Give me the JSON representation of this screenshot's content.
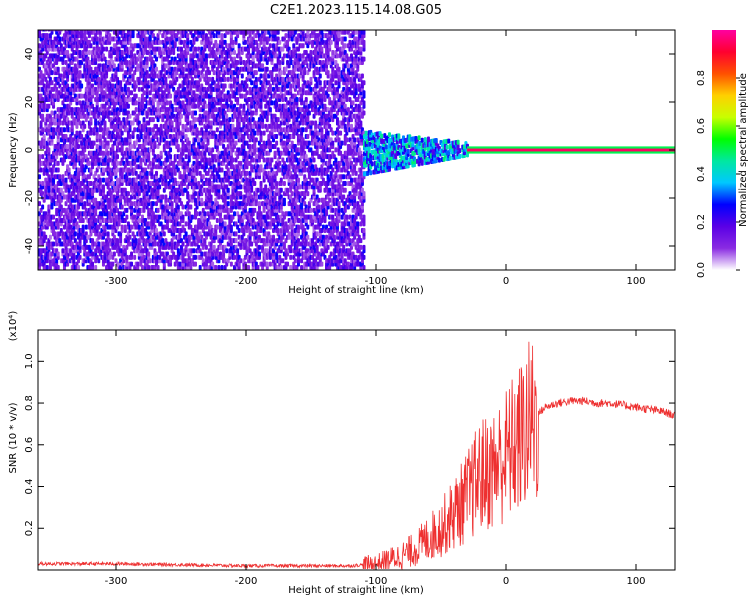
{
  "title": "C2E1.2023.115.14.08.G05",
  "chart_data": [
    {
      "type": "heatmap",
      "xlabel": "Height of straight line (km)",
      "ylabel": "Frequency (Hz)",
      "xlim": [
        -360,
        130
      ],
      "ylim": [
        -50,
        50
      ],
      "xticks": [
        -300,
        -200,
        -100,
        0,
        100
      ],
      "xtick_labels": [
        "-300",
        "-200",
        "-100",
        "0",
        "100"
      ],
      "yticks": [
        -40,
        -20,
        0,
        20,
        40
      ],
      "ytick_labels": [
        "-40",
        "-20",
        "0",
        "20",
        "40"
      ],
      "colorbar": {
        "label": "Normalized spectral amplitude",
        "range": [
          0,
          1
        ],
        "ticks": [
          0.0,
          0.2,
          0.4,
          0.6,
          0.8
        ],
        "tick_labels": [
          "0.0",
          "0.2",
          "0.4",
          "0.6",
          "0.8"
        ],
        "stops": [
          "#ffffff",
          "#8a2be2",
          "#5a00e6",
          "#0000ff",
          "#00c8ff",
          "#00e8a0",
          "#00ff00",
          "#c8ff00",
          "#ffd000",
          "#ff5000",
          "#ff0030",
          "#ff00a0"
        ]
      },
      "features": [
        {
          "name": "noise",
          "x_range": [
            -360,
            -110
          ],
          "amplitude": 0.1
        },
        {
          "name": "transition",
          "x_range": [
            -110,
            -30
          ],
          "freq_spread_hz": [
            -8,
            5
          ],
          "amplitude": 0.35
        },
        {
          "name": "carrier",
          "x_range": [
            -30,
            130
          ],
          "freq_hz": 0,
          "amplitude": 0.95
        }
      ],
      "grid": false
    },
    {
      "type": "line",
      "xlabel": "Height of straight line (km)",
      "ylabel": "SNR (10 * v/v)",
      "multiplier": "(x10⁴)",
      "xlim": [
        -360,
        130
      ],
      "ylim": [
        0,
        1.15
      ],
      "xticks": [
        -300,
        -200,
        -100,
        0,
        100
      ],
      "xtick_labels": [
        "-300",
        "-200",
        "-100",
        "0",
        "100"
      ],
      "yticks": [
        0.2,
        0.4,
        0.6,
        0.8,
        1.0
      ],
      "ytick_labels": [
        "0.2",
        "0.4",
        "0.6",
        "0.8",
        "1.0"
      ],
      "series": [
        {
          "color": "#ee3030",
          "x": [
            -360,
            -300,
            -250,
            -200,
            -150,
            -120,
            -100,
            -90,
            -80,
            -70,
            -60,
            -50,
            -40,
            -30,
            -20,
            -10,
            0,
            10,
            20,
            30,
            40,
            50,
            60,
            70,
            80,
            90,
            100,
            110,
            120,
            130
          ],
          "y": [
            0.03,
            0.03,
            0.025,
            0.02,
            0.02,
            0.02,
            0.03,
            0.05,
            0.07,
            0.1,
            0.15,
            0.2,
            0.27,
            0.35,
            0.45,
            0.48,
            0.55,
            0.62,
            0.72,
            0.78,
            0.8,
            0.81,
            0.81,
            0.8,
            0.8,
            0.79,
            0.78,
            0.77,
            0.76,
            0.74
          ]
        }
      ],
      "grid": false
    }
  ]
}
